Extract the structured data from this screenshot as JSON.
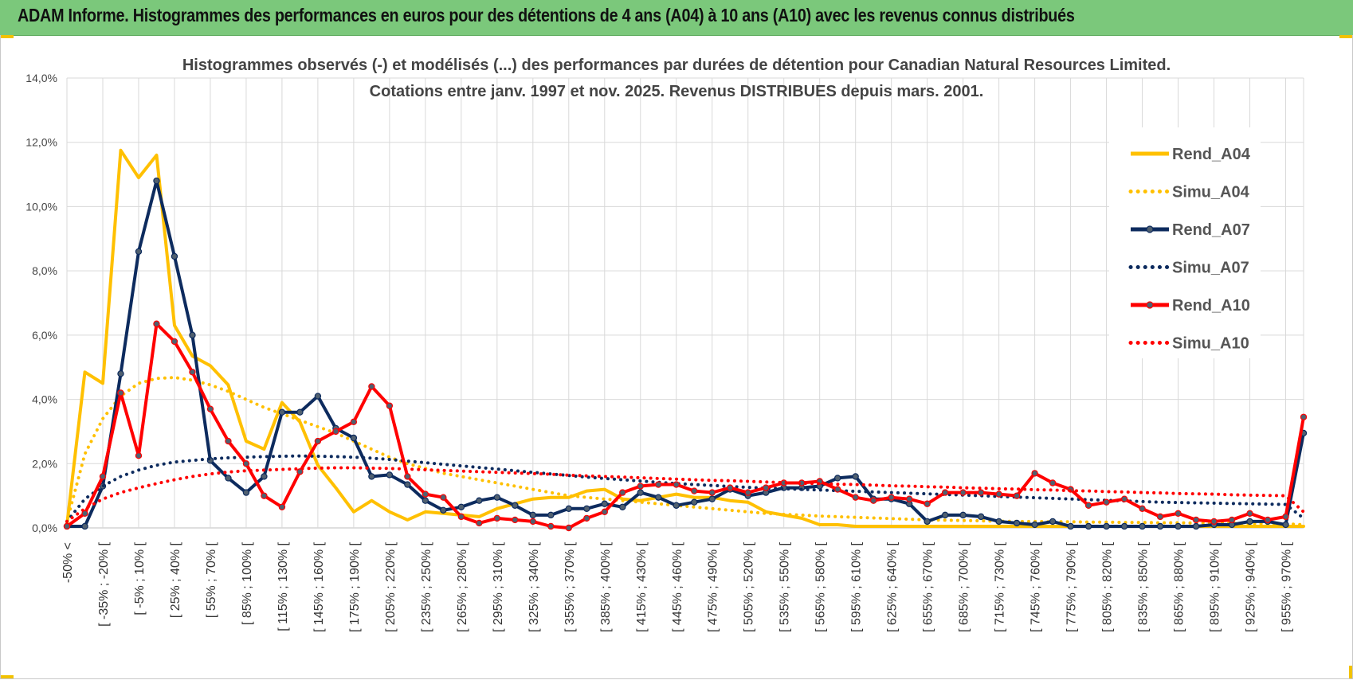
{
  "banner": {
    "title": "ADAM Informe. Histogrammes des performances en euros pour des détentions de 4 ans (A04) à 10 ans (A10) avec les revenus connus distribués"
  },
  "chart_data": {
    "type": "line",
    "title": "Histogrammes observés (-) et modélisés (...) des performances par durées de détention pour Canadian Natural Resources Limited.",
    "subtitle": "Cotations entre janv. 1997 et nov. 2025. Revenus DISTRIBUES depuis mars. 2001.",
    "xlabel": "",
    "ylabel": "",
    "ylim": [
      0,
      14
    ],
    "yticks": [
      "0,0%",
      "2,0%",
      "4,0%",
      "6,0%",
      "8,0%",
      "10,0%",
      "12,0%",
      "14,0%"
    ],
    "grid": true,
    "legend_position": "right",
    "xtick_labels": [
      "-50% <",
      "[ -35% ; -20% [",
      "[ -5% ; 10% [",
      "[ 25% ; 40% [",
      "[ 55% ; 70% [",
      "[ 85% ; 100% [",
      "[ 115% ; 130% [",
      "[ 145% ; 160% [",
      "[ 175% ; 190% [",
      "[ 205% ; 220% [",
      "[ 235% ; 250% [",
      "[ 265% ; 280% [",
      "[ 295% ; 310% [",
      "[ 325% ; 340% [",
      "[ 355% ; 370% [",
      "[ 385% ; 400% [",
      "[ 415% ; 430% [",
      "[ 445% ; 460% [",
      "[ 475% ; 490% [",
      "[ 505% ; 520% [",
      "[ 535% ; 550% [",
      "[ 565% ; 580% [",
      "[ 595% ; 610% [",
      "[ 625% ; 640% [",
      "[ 655% ; 670% [",
      "[ 685% ; 700% [",
      "[ 715% ; 730% [",
      "[ 745% ; 760% [",
      "[ 775% ; 790% [",
      "[ 805% ; 820% [",
      "[ 835% ; 850% [",
      "[ 865% ; 880% [",
      "[ 895% ; 910% [",
      "[ 925% ; 940% [",
      "[ 955% ; 970% ["
    ],
    "series": [
      {
        "name": "Rend_A04",
        "style": "solid",
        "markers": false,
        "color": "#ffc000",
        "values": [
          0.1,
          4.85,
          4.5,
          11.75,
          10.9,
          11.6,
          6.3,
          5.35,
          5.05,
          4.45,
          2.7,
          2.45,
          3.9,
          3.3,
          1.95,
          1.25,
          0.5,
          0.85,
          0.5,
          0.25,
          0.5,
          0.45,
          0.4,
          0.35,
          0.6,
          0.75,
          0.9,
          0.95,
          0.95,
          1.15,
          1.2,
          0.9,
          0.85,
          0.95,
          1.05,
          0.95,
          0.95,
          0.85,
          0.8,
          0.5,
          0.4,
          0.3,
          0.1,
          0.1,
          0.05,
          0.05,
          0.05,
          0.05,
          0.05,
          0.05,
          0.05,
          0.05,
          0.05,
          0.05,
          0.05,
          0.05,
          0.05,
          0.05,
          0.05,
          0.05,
          0.05,
          0.05,
          0.05,
          0.05,
          0.05,
          0.05,
          0.05,
          0.05,
          0.05,
          0.05
        ]
      },
      {
        "name": "Simu_A04",
        "style": "dotted",
        "markers": false,
        "color": "#ffc000",
        "values": [
          0.2,
          2.3,
          3.4,
          4.1,
          4.5,
          4.65,
          4.68,
          4.6,
          4.45,
          4.25,
          4.0,
          3.75,
          3.55,
          3.35,
          3.15,
          2.95,
          2.7,
          2.45,
          2.2,
          2.0,
          1.85,
          1.7,
          1.6,
          1.5,
          1.4,
          1.3,
          1.2,
          1.1,
          1.0,
          0.95,
          0.9,
          0.85,
          0.8,
          0.75,
          0.7,
          0.65,
          0.6,
          0.55,
          0.5,
          0.45,
          0.42,
          0.4,
          0.37,
          0.35,
          0.33,
          0.31,
          0.29,
          0.27,
          0.25,
          0.24,
          0.23,
          0.22,
          0.21,
          0.2,
          0.2,
          0.19,
          0.19,
          0.18,
          0.18,
          0.17,
          0.17,
          0.16,
          0.16,
          0.15,
          0.15,
          0.14,
          0.14,
          0.13,
          0.13,
          0.1
        ]
      },
      {
        "name": "Rend_A07",
        "style": "solid",
        "markers": true,
        "color": "#0d2b5e",
        "values": [
          0.05,
          0.05,
          1.3,
          4.8,
          8.6,
          10.8,
          8.45,
          6.0,
          2.1,
          1.55,
          1.1,
          1.6,
          3.6,
          3.6,
          4.1,
          3.1,
          2.8,
          1.6,
          1.65,
          1.35,
          0.85,
          0.55,
          0.65,
          0.85,
          0.95,
          0.7,
          0.4,
          0.4,
          0.6,
          0.6,
          0.75,
          0.65,
          1.1,
          0.95,
          0.7,
          0.8,
          0.9,
          1.2,
          1.0,
          1.1,
          1.25,
          1.25,
          1.3,
          1.55,
          1.6,
          0.9,
          0.9,
          0.75,
          0.2,
          0.4,
          0.4,
          0.35,
          0.2,
          0.15,
          0.1,
          0.2,
          0.05,
          0.05,
          0.05,
          0.05,
          0.05,
          0.05,
          0.05,
          0.05,
          0.1,
          0.1,
          0.2,
          0.2,
          0.1,
          2.95
        ]
      },
      {
        "name": "Simu_A07",
        "style": "dotted",
        "markers": false,
        "color": "#0d2b5e",
        "values": [
          0.2,
          0.9,
          1.3,
          1.6,
          1.8,
          1.95,
          2.05,
          2.1,
          2.15,
          2.18,
          2.2,
          2.22,
          2.23,
          2.24,
          2.23,
          2.22,
          2.2,
          2.17,
          2.13,
          2.08,
          2.03,
          1.98,
          1.93,
          1.88,
          1.83,
          1.78,
          1.73,
          1.68,
          1.63,
          1.58,
          1.54,
          1.5,
          1.46,
          1.42,
          1.38,
          1.35,
          1.32,
          1.29,
          1.26,
          1.24,
          1.22,
          1.2,
          1.18,
          1.16,
          1.14,
          1.12,
          1.1,
          1.08,
          1.06,
          1.04,
          1.02,
          1.0,
          0.98,
          0.96,
          0.94,
          0.92,
          0.9,
          0.88,
          0.86,
          0.84,
          0.82,
          0.8,
          0.79,
          0.78,
          0.77,
          0.76,
          0.75,
          0.74,
          0.73,
          0.3
        ]
      },
      {
        "name": "Rend_A10",
        "style": "solid",
        "markers": true,
        "color": "#ff0000",
        "values": [
          0.05,
          0.45,
          1.6,
          4.2,
          2.25,
          6.35,
          5.8,
          4.85,
          3.7,
          2.7,
          2.0,
          1.0,
          0.65,
          1.75,
          2.7,
          3.0,
          3.3,
          4.4,
          3.8,
          1.6,
          1.05,
          0.95,
          0.35,
          0.15,
          0.3,
          0.25,
          0.2,
          0.05,
          0.0,
          0.3,
          0.5,
          1.1,
          1.3,
          1.35,
          1.35,
          1.15,
          1.1,
          1.25,
          1.1,
          1.25,
          1.4,
          1.4,
          1.45,
          1.2,
          0.95,
          0.85,
          0.95,
          0.9,
          0.75,
          1.1,
          1.1,
          1.1,
          1.05,
          1.0,
          1.7,
          1.4,
          1.2,
          0.7,
          0.8,
          0.9,
          0.6,
          0.35,
          0.45,
          0.25,
          0.2,
          0.25,
          0.45,
          0.25,
          0.35,
          3.45
        ]
      },
      {
        "name": "Simu_A10",
        "style": "dotted",
        "markers": false,
        "color": "#ff0000",
        "values": [
          0.2,
          0.6,
          0.9,
          1.1,
          1.25,
          1.38,
          1.5,
          1.6,
          1.68,
          1.74,
          1.78,
          1.8,
          1.82,
          1.84,
          1.86,
          1.87,
          1.87,
          1.86,
          1.85,
          1.83,
          1.81,
          1.79,
          1.77,
          1.75,
          1.73,
          1.71,
          1.69,
          1.67,
          1.64,
          1.62,
          1.6,
          1.58,
          1.56,
          1.54,
          1.52,
          1.5,
          1.48,
          1.47,
          1.45,
          1.43,
          1.41,
          1.39,
          1.38,
          1.36,
          1.35,
          1.33,
          1.31,
          1.3,
          1.28,
          1.27,
          1.25,
          1.24,
          1.22,
          1.21,
          1.19,
          1.18,
          1.16,
          1.15,
          1.13,
          1.12,
          1.1,
          1.09,
          1.07,
          1.06,
          1.05,
          1.03,
          1.02,
          1.01,
          1.0,
          0.5
        ]
      }
    ]
  }
}
